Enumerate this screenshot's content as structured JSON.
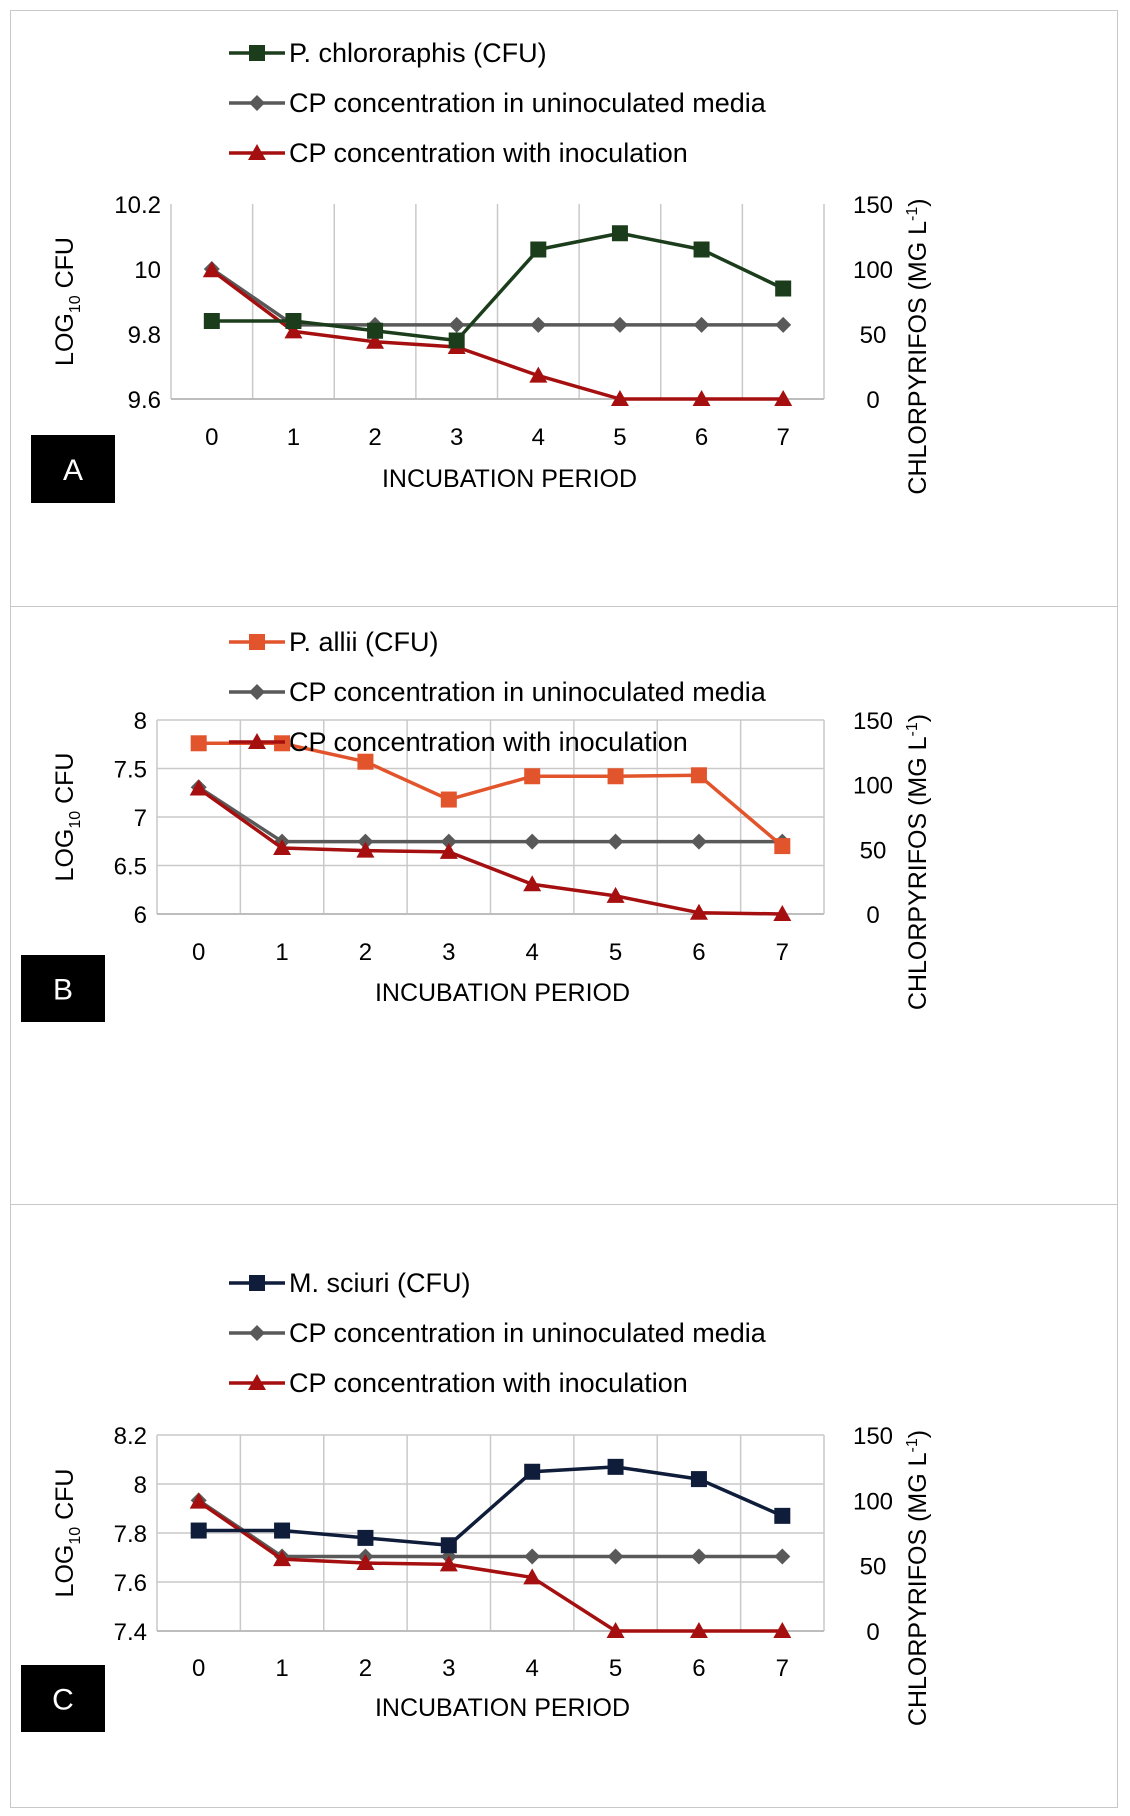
{
  "chart_data": [
    {
      "type": "line",
      "panel_label": "A",
      "x": [
        0,
        1,
        2,
        3,
        4,
        5,
        6,
        7
      ],
      "xlabel": "INCUBATION PERIOD",
      "ylabel_left": {
        "main": "LOG",
        "sub": "10",
        "rest": " CFU"
      },
      "ylabel_right": {
        "main": "CHLORPYRIFOS (MG L",
        "sup": "-1",
        "rest": ")"
      },
      "ylim_left": [
        9.6,
        10.2
      ],
      "yticks_left": [
        9.6,
        9.8,
        10,
        10.2
      ],
      "ytick_labels_left": [
        "9.6",
        "9.8",
        "10",
        "10.2"
      ],
      "ylim_right": [
        0,
        150
      ],
      "yticks_right": [
        0,
        50,
        100,
        150
      ],
      "ytick_labels_right": [
        "0",
        "50",
        "100",
        "150"
      ],
      "grid": "vertical",
      "legend": {
        "position": "top",
        "entries": [
          "P. chlororaphis (CFU)",
          "CP  concentration in uninoculated media",
          "CP concentration with inoculation"
        ]
      },
      "series": [
        {
          "name": "P. chlororaphis (CFU)",
          "axis": "left",
          "marker": "square",
          "color": "#1b3d1b",
          "values": [
            9.84,
            9.84,
            9.81,
            9.78,
            10.06,
            10.11,
            10.06,
            9.94
          ]
        },
        {
          "name": "CP  concentration in uninoculated media",
          "axis": "right",
          "marker": "diamond",
          "color": "#595959",
          "values": [
            100,
            57,
            57,
            57,
            57,
            57,
            57,
            57
          ]
        },
        {
          "name": "CP concentration with inoculation",
          "axis": "right",
          "marker": "triangle",
          "color": "#a50f0f",
          "values": [
            99,
            52,
            44,
            40,
            18,
            0,
            0,
            0
          ]
        }
      ]
    },
    {
      "type": "line",
      "panel_label": "B",
      "x": [
        0,
        1,
        2,
        3,
        4,
        5,
        6,
        7
      ],
      "xlabel": "INCUBATION PERIOD",
      "ylabel_left": {
        "main": "LOG",
        "sub": "10",
        "rest": " CFU"
      },
      "ylabel_right": {
        "main": "CHLORPYRIFOS (MG L",
        "sup": "-1",
        "rest": ")"
      },
      "ylim_left": [
        6,
        8
      ],
      "yticks_left": [
        6,
        6.5,
        7,
        7.5,
        8
      ],
      "ytick_labels_left": [
        "6",
        "6.5",
        "7",
        "7.5",
        "8"
      ],
      "ylim_right": [
        0,
        150
      ],
      "yticks_right": [
        0,
        50,
        100,
        150
      ],
      "ytick_labels_right": [
        "0",
        "50",
        "100",
        "150"
      ],
      "grid": "both",
      "legend": {
        "position": "top",
        "entries": [
          "P. allii (CFU)",
          "CP concentration in uninoculated media",
          "CP concentration with inoculation"
        ]
      },
      "series": [
        {
          "name": "P. allii (CFU)",
          "axis": "left",
          "marker": "square",
          "color": "#e2542b",
          "values": [
            7.76,
            7.76,
            7.57,
            7.18,
            7.42,
            7.42,
            7.43,
            6.7
          ]
        },
        {
          "name": "CP concentration in uninoculated media",
          "axis": "right",
          "marker": "diamond",
          "color": "#595959",
          "values": [
            98,
            56,
            56,
            56,
            56,
            56,
            56,
            56
          ]
        },
        {
          "name": "CP concentration with inoculation",
          "axis": "right",
          "marker": "triangle",
          "color": "#a50f0f",
          "values": [
            97,
            51,
            49,
            48,
            23,
            14,
            1,
            0
          ]
        }
      ]
    },
    {
      "type": "line",
      "panel_label": "C",
      "x": [
        0,
        1,
        2,
        3,
        4,
        5,
        6,
        7
      ],
      "xlabel": "INCUBATION PERIOD",
      "ylabel_left": {
        "main": "LOG",
        "sub": "10",
        "rest": " CFU"
      },
      "ylabel_right": {
        "main": "CHLORPYRIFOS (MG L",
        "sup": "-1",
        "rest": ")"
      },
      "ylim_left": [
        7.4,
        8.2
      ],
      "yticks_left": [
        7.4,
        7.6,
        7.8,
        8,
        8.2
      ],
      "ytick_labels_left": [
        "7.4",
        "7.6",
        "7.8",
        "8",
        "8.2"
      ],
      "ylim_right": [
        0,
        150
      ],
      "yticks_right": [
        0,
        50,
        100,
        150
      ],
      "ytick_labels_right": [
        "0",
        "50",
        "100",
        "150"
      ],
      "grid": "both",
      "legend": {
        "position": "top",
        "entries": [
          "M. sciuri (CFU)",
          "CP concentration in uninoculated media",
          "CP concentration with inoculation"
        ]
      },
      "series": [
        {
          "name": "M. sciuri (CFU)",
          "axis": "left",
          "marker": "square",
          "color": "#0f1d3a",
          "values": [
            7.81,
            7.81,
            7.78,
            7.75,
            8.05,
            8.07,
            8.02,
            7.87
          ]
        },
        {
          "name": "CP concentration in uninoculated media",
          "axis": "right",
          "marker": "diamond",
          "color": "#595959",
          "values": [
            100,
            57,
            57,
            57,
            57,
            57,
            57,
            57
          ]
        },
        {
          "name": "CP concentration with inoculation",
          "axis": "right",
          "marker": "triangle",
          "color": "#a50f0f",
          "values": [
            99,
            55,
            52,
            51,
            41,
            0,
            0,
            0
          ]
        }
      ]
    }
  ]
}
